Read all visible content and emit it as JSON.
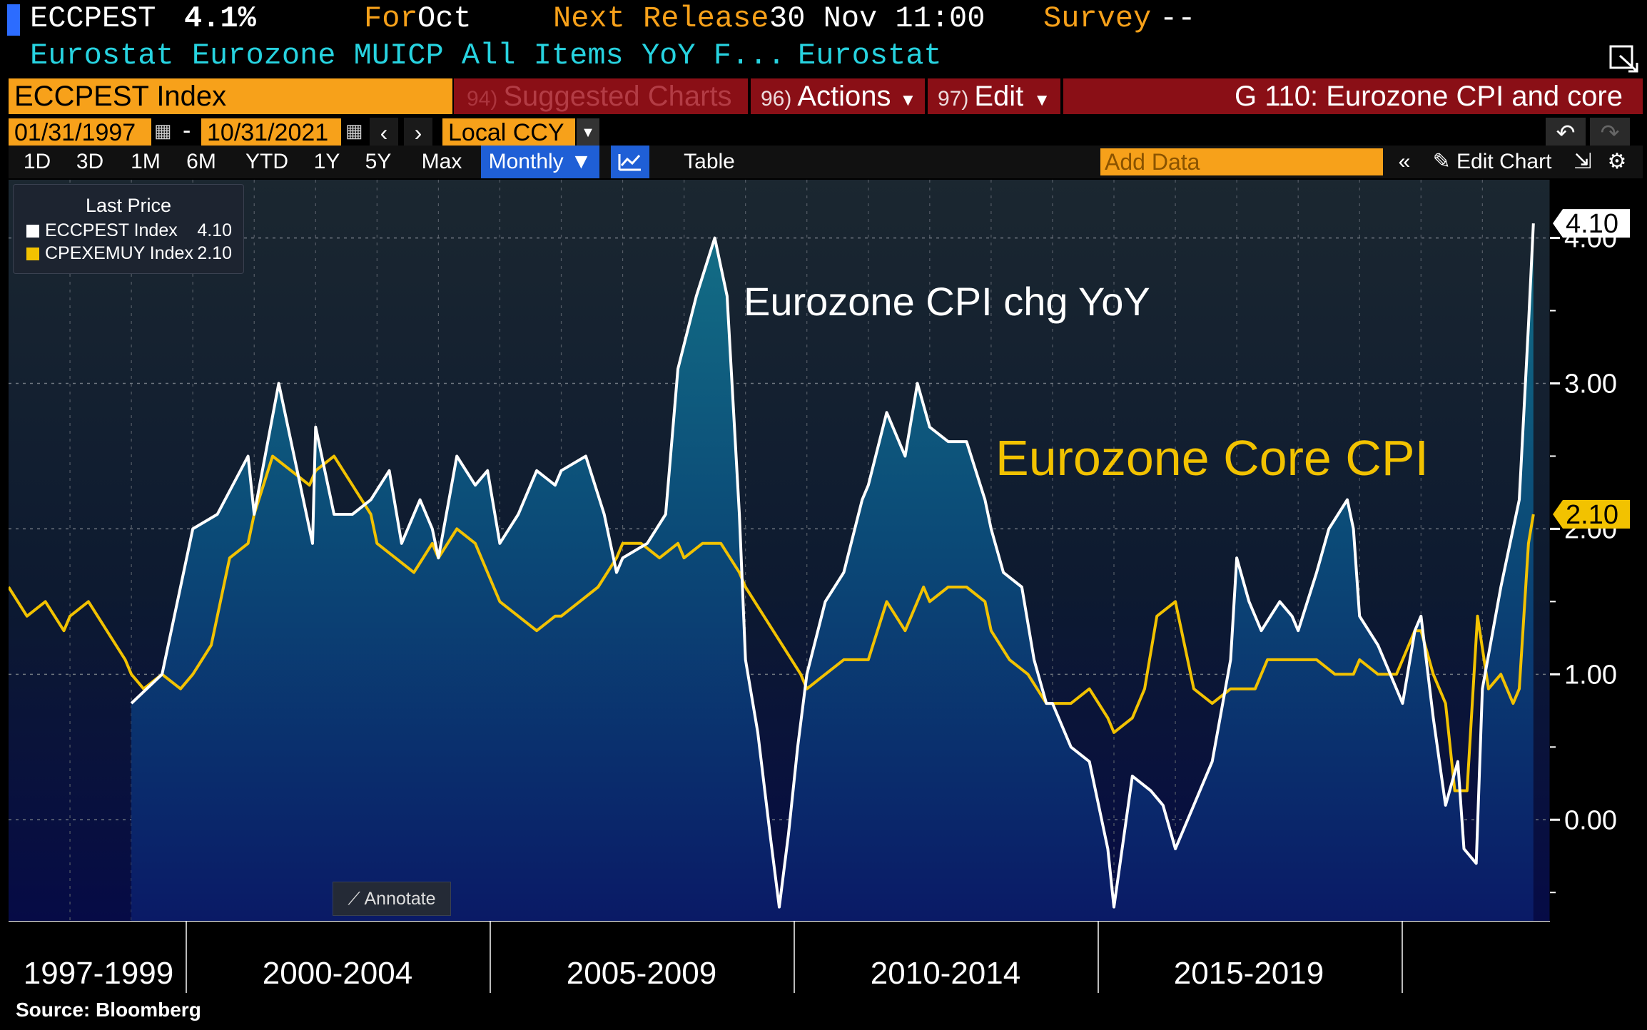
{
  "header": {
    "ticker": "ECCPEST",
    "last_value": "4.1%",
    "for_label": "For",
    "for_value": "Oct",
    "next_release_label": "Next Release",
    "next_release_value": "30 Nov 11:00",
    "survey_label": "Survey",
    "survey_value": "--",
    "description": "Eurostat Eurozone MUICP All Items YoY F...",
    "source_name": "Eurostat"
  },
  "command_bar": {
    "security": "ECCPEST Index",
    "suggested_num": "94)",
    "suggested_label": "Suggested Charts",
    "actions_num": "96)",
    "actions_label": "Actions",
    "edit_num": "97)",
    "edit_label": "Edit",
    "page_title": "G 110: Eurozone CPI and core"
  },
  "toolbar": {
    "start_date": "01/31/1997",
    "date_separator": "-",
    "end_date": "10/31/2021",
    "currency": "Local CCY",
    "ranges": [
      "1D",
      "3D",
      "1M",
      "6M",
      "YTD",
      "1Y",
      "5Y",
      "Max"
    ],
    "frequency": "Monthly",
    "table_label": "Table",
    "add_data_placeholder": "Add Data",
    "edit_chart_label": "Edit Chart"
  },
  "legend": {
    "title": "Last Price",
    "items": [
      {
        "name": "ECCPEST Index",
        "value": "4.10",
        "color": "#ffffff"
      },
      {
        "name": "CPEXEMUY Index",
        "value": "2.10",
        "color": "#f2c200"
      }
    ]
  },
  "annotate_label": "Annotate",
  "footer": {
    "source": "Source: Bloomberg"
  },
  "colors": {
    "headline": "#ffffff",
    "core": "#f2c200",
    "accent": "#f7a11a",
    "command_red": "#8a0f16"
  },
  "chart_data": {
    "type": "line",
    "title": "G 110: Eurozone CPI and core",
    "annotations": [
      {
        "text": "Eurozone CPI chg YoY",
        "color": "#ffffff"
      },
      {
        "text": "Eurozone Core CPI",
        "color": "#f2c200"
      }
    ],
    "ylim": [
      -0.7,
      4.4
    ],
    "yticks": [
      0,
      1,
      2,
      3,
      4
    ],
    "ytick_labels": [
      "0.00",
      "1.00",
      "2.00",
      "3.00",
      "4.00"
    ],
    "x_period_labels": [
      "1997-1999",
      "2000-2004",
      "2005-2009",
      "2010-2014",
      "2015-2019"
    ],
    "last_value_tags": [
      "4.10",
      "2.10"
    ],
    "series": [
      {
        "name": "ECCPEST Index",
        "label": "Eurozone CPI chg YoY",
        "start": "1999-01",
        "points": [
          [
            1999.0,
            0.8
          ],
          [
            1999.5,
            1.0
          ],
          [
            2000.0,
            2.0
          ],
          [
            2000.4,
            2.1
          ],
          [
            2000.9,
            2.5
          ],
          [
            2001.0,
            2.1
          ],
          [
            2001.4,
            3.0
          ],
          [
            2001.8,
            2.2
          ],
          [
            2001.95,
            1.9
          ],
          [
            2002.0,
            2.7
          ],
          [
            2002.3,
            2.1
          ],
          [
            2002.6,
            2.1
          ],
          [
            2002.9,
            2.2
          ],
          [
            2003.2,
            2.4
          ],
          [
            2003.4,
            1.9
          ],
          [
            2003.7,
            2.2
          ],
          [
            2003.9,
            2.0
          ],
          [
            2004.0,
            1.8
          ],
          [
            2004.3,
            2.5
          ],
          [
            2004.6,
            2.3
          ],
          [
            2004.8,
            2.4
          ],
          [
            2005.0,
            1.9
          ],
          [
            2005.3,
            2.1
          ],
          [
            2005.6,
            2.4
          ],
          [
            2005.9,
            2.3
          ],
          [
            2006.0,
            2.4
          ],
          [
            2006.4,
            2.5
          ],
          [
            2006.7,
            2.1
          ],
          [
            2006.9,
            1.7
          ],
          [
            2007.0,
            1.8
          ],
          [
            2007.4,
            1.9
          ],
          [
            2007.7,
            2.1
          ],
          [
            2007.9,
            3.1
          ],
          [
            2008.2,
            3.6
          ],
          [
            2008.5,
            4.0
          ],
          [
            2008.7,
            3.6
          ],
          [
            2008.9,
            2.1
          ],
          [
            2009.0,
            1.1
          ],
          [
            2009.2,
            0.6
          ],
          [
            2009.4,
            -0.1
          ],
          [
            2009.55,
            -0.6
          ],
          [
            2009.7,
            -0.1
          ],
          [
            2009.85,
            0.5
          ],
          [
            2010.0,
            1.0
          ],
          [
            2010.3,
            1.5
          ],
          [
            2010.6,
            1.7
          ],
          [
            2010.9,
            2.2
          ],
          [
            2011.0,
            2.3
          ],
          [
            2011.3,
            2.8
          ],
          [
            2011.6,
            2.5
          ],
          [
            2011.8,
            3.0
          ],
          [
            2012.0,
            2.7
          ],
          [
            2012.3,
            2.6
          ],
          [
            2012.6,
            2.6
          ],
          [
            2012.9,
            2.2
          ],
          [
            2013.0,
            2.0
          ],
          [
            2013.2,
            1.7
          ],
          [
            2013.5,
            1.6
          ],
          [
            2013.7,
            1.1
          ],
          [
            2013.9,
            0.8
          ],
          [
            2014.0,
            0.8
          ],
          [
            2014.3,
            0.5
          ],
          [
            2014.6,
            0.4
          ],
          [
            2014.9,
            -0.2
          ],
          [
            2015.0,
            -0.6
          ],
          [
            2015.3,
            0.3
          ],
          [
            2015.6,
            0.2
          ],
          [
            2015.8,
            0.1
          ],
          [
            2016.0,
            -0.2
          ],
          [
            2016.3,
            0.1
          ],
          [
            2016.6,
            0.4
          ],
          [
            2016.9,
            1.1
          ],
          [
            2017.0,
            1.8
          ],
          [
            2017.2,
            1.5
          ],
          [
            2017.4,
            1.3
          ],
          [
            2017.7,
            1.5
          ],
          [
            2017.9,
            1.4
          ],
          [
            2018.0,
            1.3
          ],
          [
            2018.3,
            1.7
          ],
          [
            2018.5,
            2.0
          ],
          [
            2018.8,
            2.2
          ],
          [
            2018.9,
            2.0
          ],
          [
            2019.0,
            1.4
          ],
          [
            2019.3,
            1.2
          ],
          [
            2019.5,
            1.0
          ],
          [
            2019.7,
            0.8
          ],
          [
            2019.9,
            1.3
          ],
          [
            2020.0,
            1.4
          ],
          [
            2020.2,
            0.7
          ],
          [
            2020.4,
            0.1
          ],
          [
            2020.6,
            0.4
          ],
          [
            2020.7,
            -0.2
          ],
          [
            2020.9,
            -0.3
          ],
          [
            2021.0,
            0.9
          ],
          [
            2021.3,
            1.6
          ],
          [
            2021.5,
            2.0
          ],
          [
            2021.6,
            2.2
          ],
          [
            2021.75,
            3.4
          ],
          [
            2021.83,
            4.1
          ]
        ]
      },
      {
        "name": "CPEXEMUY Index",
        "label": "Eurozone Core CPI",
        "start": "1997-01",
        "points": [
          [
            1997.0,
            1.6
          ],
          [
            1997.3,
            1.4
          ],
          [
            1997.6,
            1.5
          ],
          [
            1997.9,
            1.3
          ],
          [
            1998.0,
            1.4
          ],
          [
            1998.3,
            1.5
          ],
          [
            1998.6,
            1.3
          ],
          [
            1998.9,
            1.1
          ],
          [
            1999.0,
            1.0
          ],
          [
            1999.2,
            0.9
          ],
          [
            1999.5,
            1.0
          ],
          [
            1999.8,
            0.9
          ],
          [
            2000.0,
            1.0
          ],
          [
            2000.3,
            1.2
          ],
          [
            2000.6,
            1.8
          ],
          [
            2000.9,
            1.9
          ],
          [
            2001.0,
            2.1
          ],
          [
            2001.3,
            2.5
          ],
          [
            2001.6,
            2.4
          ],
          [
            2001.9,
            2.3
          ],
          [
            2002.0,
            2.4
          ],
          [
            2002.3,
            2.5
          ],
          [
            2002.6,
            2.3
          ],
          [
            2002.9,
            2.1
          ],
          [
            2003.0,
            1.9
          ],
          [
            2003.3,
            1.8
          ],
          [
            2003.6,
            1.7
          ],
          [
            2003.9,
            1.9
          ],
          [
            2004.0,
            1.8
          ],
          [
            2004.3,
            2.0
          ],
          [
            2004.6,
            1.9
          ],
          [
            2004.9,
            1.6
          ],
          [
            2005.0,
            1.5
          ],
          [
            2005.3,
            1.4
          ],
          [
            2005.6,
            1.3
          ],
          [
            2005.9,
            1.4
          ],
          [
            2006.0,
            1.4
          ],
          [
            2006.3,
            1.5
          ],
          [
            2006.6,
            1.6
          ],
          [
            2006.9,
            1.8
          ],
          [
            2007.0,
            1.9
          ],
          [
            2007.3,
            1.9
          ],
          [
            2007.6,
            1.8
          ],
          [
            2007.9,
            1.9
          ],
          [
            2008.0,
            1.8
          ],
          [
            2008.3,
            1.9
          ],
          [
            2008.6,
            1.9
          ],
          [
            2008.9,
            1.7
          ],
          [
            2009.0,
            1.6
          ],
          [
            2009.3,
            1.4
          ],
          [
            2009.6,
            1.2
          ],
          [
            2009.9,
            1.0
          ],
          [
            2010.0,
            0.9
          ],
          [
            2010.3,
            1.0
          ],
          [
            2010.6,
            1.1
          ],
          [
            2010.9,
            1.1
          ],
          [
            2011.0,
            1.1
          ],
          [
            2011.3,
            1.5
          ],
          [
            2011.6,
            1.3
          ],
          [
            2011.9,
            1.6
          ],
          [
            2012.0,
            1.5
          ],
          [
            2012.3,
            1.6
          ],
          [
            2012.6,
            1.6
          ],
          [
            2012.9,
            1.5
          ],
          [
            2013.0,
            1.3
          ],
          [
            2013.3,
            1.1
          ],
          [
            2013.6,
            1.0
          ],
          [
            2013.9,
            0.8
          ],
          [
            2014.0,
            0.8
          ],
          [
            2014.3,
            0.8
          ],
          [
            2014.6,
            0.9
          ],
          [
            2014.9,
            0.7
          ],
          [
            2015.0,
            0.6
          ],
          [
            2015.3,
            0.7
          ],
          [
            2015.5,
            0.9
          ],
          [
            2015.7,
            1.4
          ],
          [
            2016.0,
            1.5
          ],
          [
            2016.3,
            0.9
          ],
          [
            2016.6,
            0.8
          ],
          [
            2016.9,
            0.9
          ],
          [
            2017.0,
            0.9
          ],
          [
            2017.3,
            0.9
          ],
          [
            2017.5,
            1.1
          ],
          [
            2017.8,
            1.1
          ],
          [
            2018.0,
            1.1
          ],
          [
            2018.3,
            1.1
          ],
          [
            2018.6,
            1.0
          ],
          [
            2018.9,
            1.0
          ],
          [
            2019.0,
            1.1
          ],
          [
            2019.3,
            1.0
          ],
          [
            2019.6,
            1.0
          ],
          [
            2019.9,
            1.3
          ],
          [
            2020.0,
            1.3
          ],
          [
            2020.2,
            1.0
          ],
          [
            2020.4,
            0.8
          ],
          [
            2020.55,
            0.2
          ],
          [
            2020.75,
            0.2
          ],
          [
            2020.92,
            1.4
          ],
          [
            2021.1,
            0.9
          ],
          [
            2021.3,
            1.0
          ],
          [
            2021.5,
            0.8
          ],
          [
            2021.6,
            0.9
          ],
          [
            2021.75,
            1.9
          ],
          [
            2021.83,
            2.1
          ]
        ]
      }
    ]
  }
}
